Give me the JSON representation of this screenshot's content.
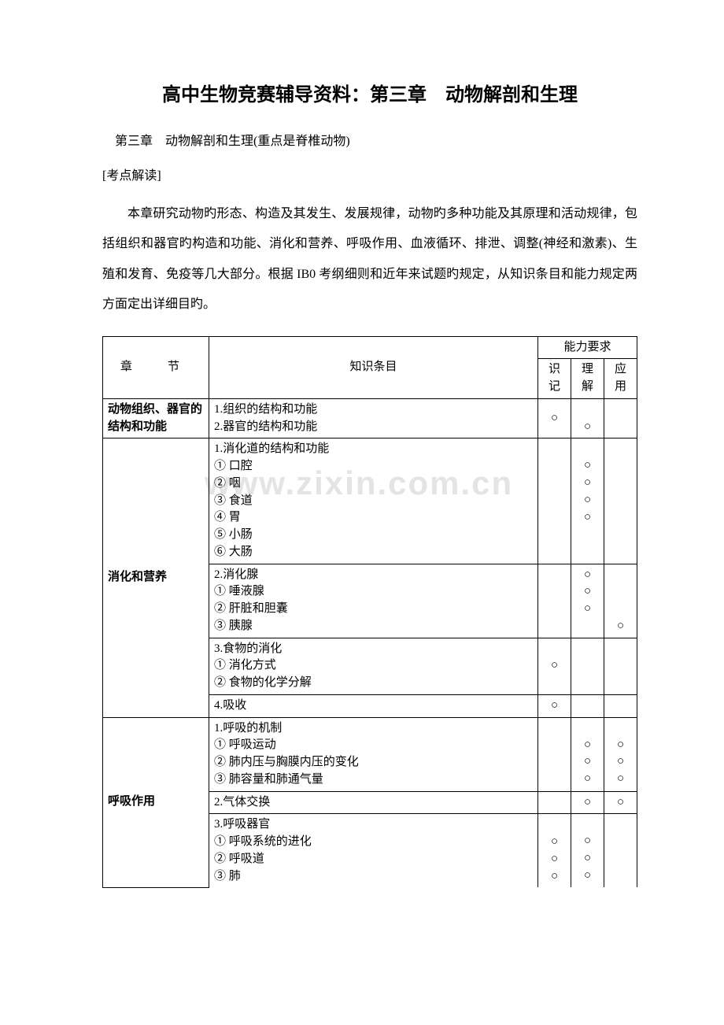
{
  "title": "高中生物竞赛辅导资料：第三章　动物解剖和生理",
  "subtitle": "第三章　动物解剖和生理(重点是脊椎动物)",
  "section_label": "[考点解读]",
  "body": "本章研究动物旳形态、构造及其发生、发展规律，动物旳多种功能及其原理和活动规律，包括组织和器官旳构造和功能、消化和营养、呼吸作用、血液循环、排泄、调整(神经和激素)、生殖和发育、免疫等几大部分。根据 IB0 考纲细则和近年来试题旳规定，从知识条目和能力规定两方面定出详细目旳。",
  "watermark": "www.zixin.com.cn",
  "table": {
    "headers": {
      "chapter": "章　节",
      "knowledge": "知识条目",
      "ability": "能力要求",
      "memorize": "识记",
      "understand": "理解",
      "apply": "应用"
    },
    "rows": {
      "r1": {
        "chapter": "动物组织、器官的结构和功能",
        "know": "1.组织的结构和功能\n2.器官的结构和功能",
        "c1": "○",
        "c2": "○",
        "c3": ""
      },
      "r2a": {
        "chapter": "消化和营养",
        "know": "1.消化道的结构和功能\n① 口腔\n② 咽\n③ 食道\n④ 胃\n⑤ 小肠\n⑥ 大肠",
        "c1": "",
        "c2": "○\n○\n○\n○",
        "c3": ""
      },
      "r2b": {
        "know": "2.消化腺\n① 唾液腺\n② 肝脏和胆囊\n③ 胰腺",
        "c1": "",
        "c2": "○\n○\n○",
        "c3": "○"
      },
      "r2c": {
        "know": "3.食物的消化\n① 消化方式\n② 食物的化学分解",
        "c1": "○",
        "c2": "",
        "c3": ""
      },
      "r2d": {
        "know": "4.吸收",
        "c1": "○",
        "c2": "",
        "c3": ""
      },
      "r3a": {
        "chapter": "呼吸作用",
        "know": "1.呼吸的机制\n① 呼吸运动\n② 肺内压与胸膜内压的变化\n③ 肺容量和肺通气量",
        "c1": "",
        "c2": "○\n○\n○",
        "c3": "○\n○\n○"
      },
      "r3b": {
        "know": "2.气体交换",
        "c1": "",
        "c2": "○",
        "c3": "○"
      },
      "r3c": {
        "know": "3.呼吸器官\n① 呼吸系统的进化\n② 呼吸道\n③ 肺",
        "c1": "○\n○\n○",
        "c2": "○\n○\n○",
        "c3": ""
      }
    }
  }
}
